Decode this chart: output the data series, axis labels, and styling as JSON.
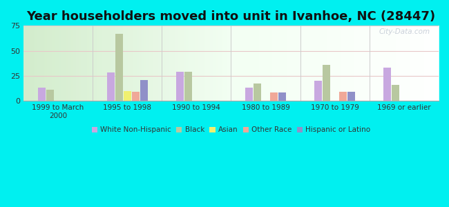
{
  "title": "Year householders moved into unit in Ivanhoe, NC (28447)",
  "categories": [
    "1999 to March\n2000",
    "1995 to 1998",
    "1990 to 1994",
    "1980 to 1989",
    "1970 to 1979",
    "1969 or earlier"
  ],
  "series": {
    "White Non-Hispanic": [
      13,
      28,
      29,
      13,
      20,
      33
    ],
    "Black": [
      11,
      67,
      29,
      17,
      36,
      16
    ],
    "Asian": [
      0,
      10,
      0,
      0,
      0,
      0
    ],
    "Other Race": [
      0,
      9,
      0,
      8,
      9,
      0
    ],
    "Hispanic or Latino": [
      0,
      21,
      0,
      8,
      9,
      0
    ]
  },
  "colors": {
    "White Non-Hispanic": "#c8a8e0",
    "Black": "#b8c8a0",
    "Asian": "#f0f070",
    "Other Race": "#f0a898",
    "Hispanic or Latino": "#9090c8"
  },
  "ylim": [
    0,
    75
  ],
  "yticks": [
    0,
    25,
    50,
    75
  ],
  "background_color": "#00f0f0",
  "plot_bg_color": "#e8f5e8",
  "title_fontsize": 13,
  "watermark": "City-Data.com"
}
